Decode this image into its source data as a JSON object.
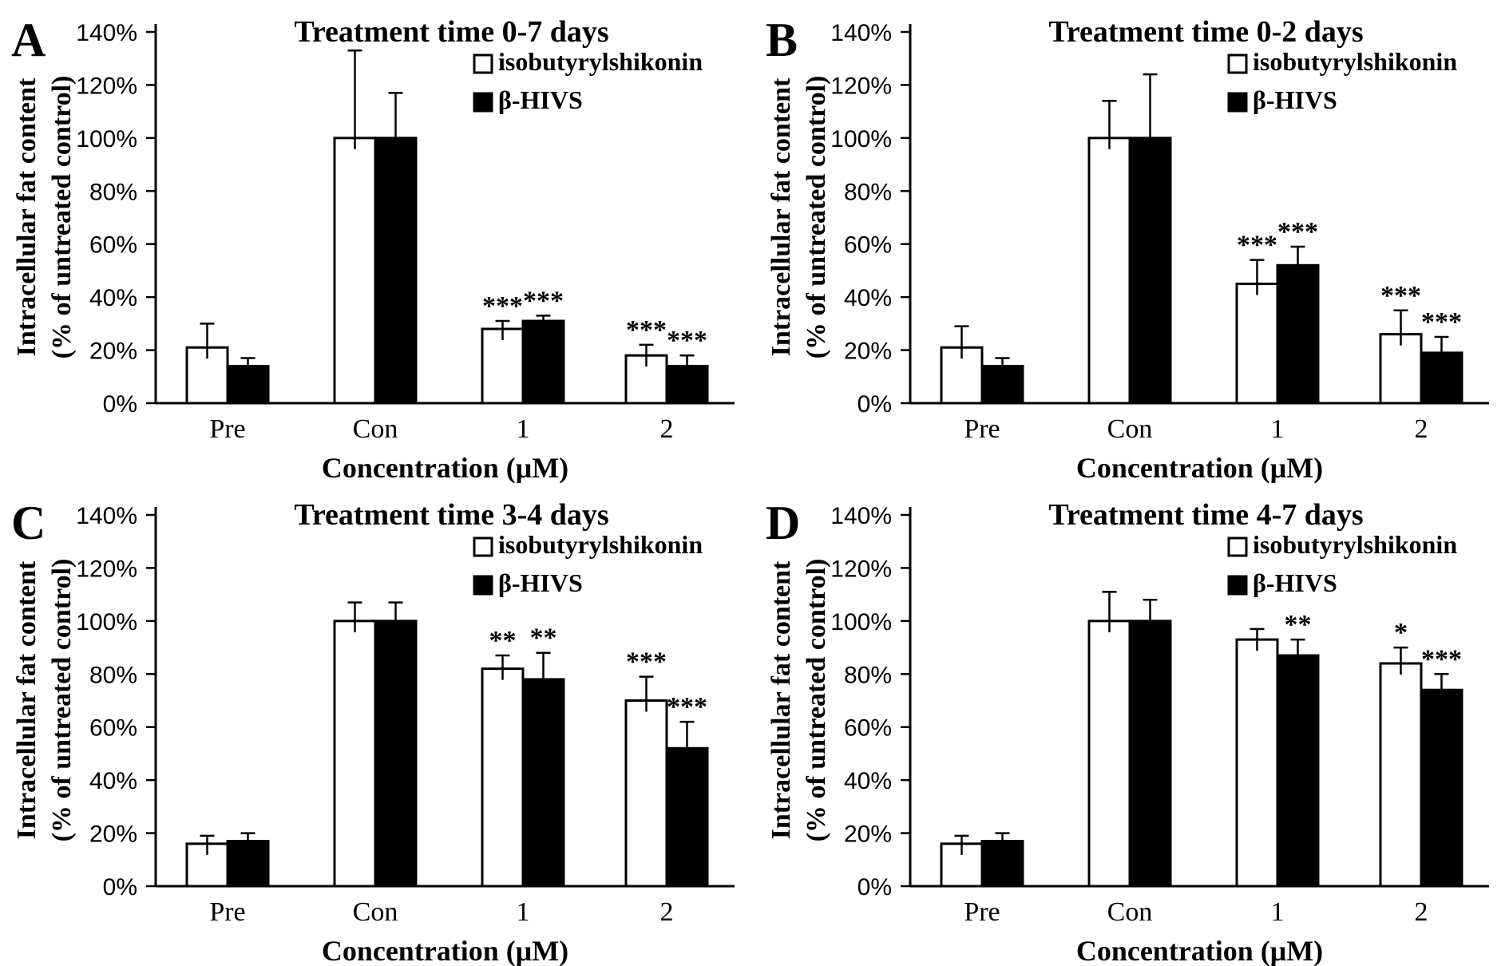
{
  "figure": {
    "background": "#ffffff",
    "stroke_color": "#000000",
    "series1_fill": "#ffffff",
    "series2_fill": "#000000"
  },
  "chart_data": [
    {
      "type": "bar",
      "panel_label": "A",
      "title": "Treatment time 0-7 days",
      "xlabel": "Concentration (μM)",
      "ylabel_lines": [
        "Intracellular fat content",
        "(% of untreated control)"
      ],
      "categories": [
        "Pre",
        "Con",
        "1",
        "2"
      ],
      "ylim": [
        0,
        140
      ],
      "ytick_labels": [
        "0%",
        "20%",
        "40%",
        "60%",
        "80%",
        "100%",
        "120%",
        "140%"
      ],
      "grid": false,
      "legend_position": "top-right",
      "series": [
        {
          "name": "isobutyrylshikonin",
          "fill": "#ffffff",
          "values": [
            21,
            100,
            28,
            18
          ],
          "errors": [
            9,
            33,
            3,
            4
          ],
          "sig": [
            "",
            "",
            "***",
            "***"
          ]
        },
        {
          "name": "β-HIVS",
          "fill": "#000000",
          "values": [
            14,
            100,
            31,
            14
          ],
          "errors": [
            3,
            17,
            2,
            4
          ],
          "sig": [
            "",
            "",
            "***",
            "***"
          ]
        }
      ]
    },
    {
      "type": "bar",
      "panel_label": "B",
      "title": "Treatment time 0-2 days",
      "xlabel": "Concentration (μM)",
      "ylabel_lines": [
        "Intracellular fat content",
        "(% of untreated control)"
      ],
      "categories": [
        "Pre",
        "Con",
        "1",
        "2"
      ],
      "ylim": [
        0,
        140
      ],
      "ytick_labels": [
        "0%",
        "20%",
        "40%",
        "60%",
        "80%",
        "100%",
        "120%",
        "140%"
      ],
      "grid": false,
      "legend_position": "top-right",
      "series": [
        {
          "name": "isobutyrylshikonin",
          "fill": "#ffffff",
          "values": [
            21,
            100,
            45,
            26
          ],
          "errors": [
            8,
            14,
            9,
            9
          ],
          "sig": [
            "",
            "",
            "***",
            "***"
          ]
        },
        {
          "name": "β-HIVS",
          "fill": "#000000",
          "values": [
            14,
            100,
            52,
            19
          ],
          "errors": [
            3,
            24,
            7,
            6
          ],
          "sig": [
            "",
            "",
            "***",
            "***"
          ]
        }
      ]
    },
    {
      "type": "bar",
      "panel_label": "C",
      "title": "Treatment time 3-4 days",
      "xlabel": "Concentration (μM)",
      "ylabel_lines": [
        "Intracellular fat content",
        "(% of untreated control)"
      ],
      "categories": [
        "Pre",
        "Con",
        "1",
        "2"
      ],
      "ylim": [
        0,
        140
      ],
      "ytick_labels": [
        "0%",
        "20%",
        "40%",
        "60%",
        "80%",
        "100%",
        "120%",
        "140%"
      ],
      "grid": false,
      "legend_position": "top-right",
      "series": [
        {
          "name": "isobutyrylshikonin",
          "fill": "#ffffff",
          "values": [
            16,
            100,
            82,
            70
          ],
          "errors": [
            3,
            7,
            5,
            9
          ],
          "sig": [
            "",
            "",
            "**",
            "***"
          ]
        },
        {
          "name": "β-HIVS",
          "fill": "#000000",
          "values": [
            17,
            100,
            78,
            52
          ],
          "errors": [
            3,
            7,
            10,
            10
          ],
          "sig": [
            "",
            "",
            "**",
            "***"
          ]
        }
      ]
    },
    {
      "type": "bar",
      "panel_label": "D",
      "title": "Treatment time 4-7 days",
      "xlabel": "Concentration (μM)",
      "ylabel_lines": [
        "Intracellular fat content",
        "(% of untreated control)"
      ],
      "categories": [
        "Pre",
        "Con",
        "1",
        "2"
      ],
      "ylim": [
        0,
        140
      ],
      "ytick_labels": [
        "0%",
        "20%",
        "40%",
        "60%",
        "80%",
        "100%",
        "120%",
        "140%"
      ],
      "grid": false,
      "legend_position": "top-right",
      "series": [
        {
          "name": "isobutyrylshikonin",
          "fill": "#ffffff",
          "values": [
            16,
            100,
            93,
            84
          ],
          "errors": [
            3,
            11,
            4,
            6
          ],
          "sig": [
            "",
            "",
            "",
            "*"
          ]
        },
        {
          "name": "β-HIVS",
          "fill": "#000000",
          "values": [
            17,
            100,
            87,
            74
          ],
          "errors": [
            3,
            8,
            6,
            6
          ],
          "sig": [
            "",
            "",
            "**",
            "***"
          ]
        }
      ]
    }
  ]
}
